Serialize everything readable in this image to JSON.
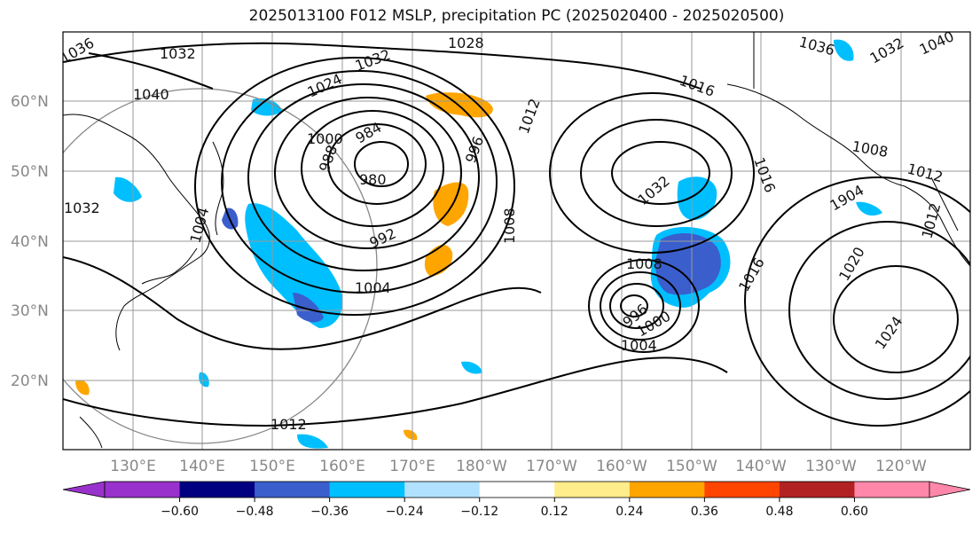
{
  "title": "2025013100 F012 MSLP, precipitation PC (2025020400 - 2025020500)",
  "lat_labels": [
    "60°N",
    "50°N",
    "40°N",
    "30°N",
    "20°N"
  ],
  "lon_labels": [
    "130°E",
    "140°E",
    "150°E",
    "160°E",
    "170°E",
    "180°W",
    "170°W",
    "160°W",
    "150°W",
    "140°W",
    "130°W",
    "120°W"
  ],
  "colorbar": {
    "colors": [
      "#9932cc",
      "#000080",
      "#3a5fcd",
      "#00bfff",
      "#b0e2ff",
      "#ffffff",
      "#ffec8b",
      "#ffa500",
      "#ff4500",
      "#b22222",
      "#ff88aa"
    ],
    "tick_labels": [
      "−0.60",
      "−0.48",
      "−0.36",
      "−0.24",
      "−0.12",
      "0.12",
      "0.24",
      "0.36",
      "0.48",
      "0.60"
    ]
  },
  "isobar_labels": [
    "1036",
    "1032",
    "1028",
    "1032",
    "1024",
    "1040",
    "1000",
    "984",
    "988",
    "980",
    "996",
    "1012",
    "992",
    "1004",
    "1008",
    "1032",
    "1016",
    "1008",
    "1016",
    "1036",
    "1032",
    "1040",
    "1008",
    "1012",
    "1004",
    "1032",
    "1012",
    "1016",
    "1904",
    "1020",
    "1024",
    "1012",
    "996",
    "1000",
    "1004"
  ],
  "isobar_label_colors": {
    "contour": "#000000"
  }
}
